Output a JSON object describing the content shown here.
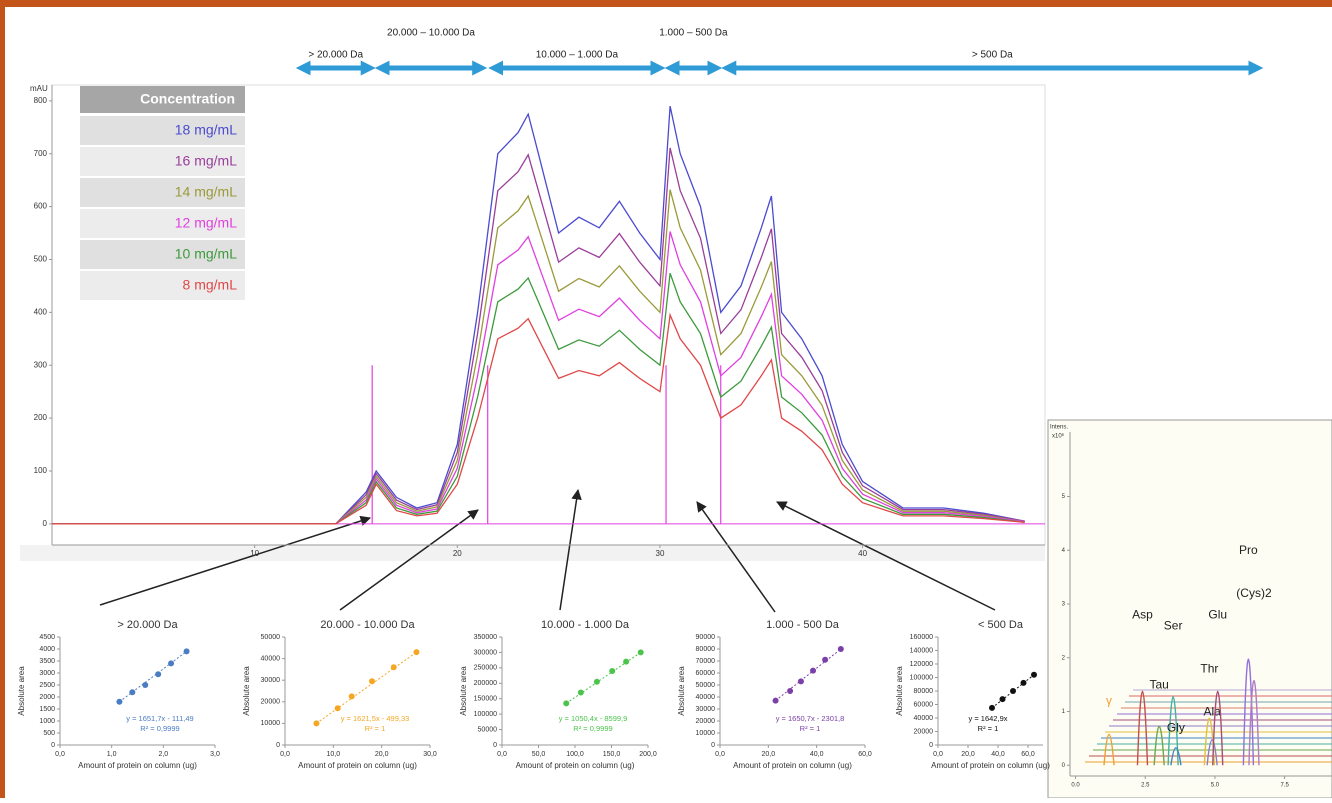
{
  "chart_data": [
    {
      "type": "line",
      "y_label": "mAU",
      "xlim": [
        0,
        49
      ],
      "ylim": [
        -40,
        830
      ],
      "xticks": [
        10,
        20,
        30,
        40
      ],
      "yticks": [
        0,
        100,
        200,
        300,
        400,
        500,
        600,
        700,
        800
      ],
      "legend_title": "Concentration",
      "x": [
        0,
        14,
        15.5,
        16,
        17,
        18,
        19,
        20,
        21,
        22,
        23,
        23.5,
        24,
        25,
        26,
        27,
        28,
        29,
        30,
        30.5,
        31,
        32,
        33,
        34,
        35,
        35.5,
        36,
        37,
        38,
        39,
        40,
        42,
        44,
        46,
        48
      ],
      "series": [
        {
          "name": "18 mg/mL",
          "color": "#4b4bd0",
          "values": [
            0,
            0,
            60,
            100,
            50,
            30,
            40,
            150,
            400,
            700,
            740,
            775,
            700,
            550,
            580,
            560,
            610,
            550,
            500,
            790,
            700,
            600,
            400,
            450,
            560,
            620,
            400,
            350,
            280,
            150,
            80,
            30,
            30,
            20,
            5
          ]
        },
        {
          "name": "16 mg/mL",
          "color": "#9a3e9a",
          "values": [
            0,
            0,
            55,
            95,
            45,
            27,
            36,
            135,
            360,
            630,
            666,
            698,
            630,
            495,
            522,
            504,
            549,
            495,
            450,
            711,
            630,
            540,
            360,
            405,
            504,
            558,
            360,
            315,
            252,
            135,
            72,
            27,
            27,
            18,
            5
          ]
        },
        {
          "name": "14 mg/mL",
          "color": "#9a9a3a",
          "values": [
            0,
            0,
            50,
            90,
            40,
            24,
            32,
            120,
            320,
            560,
            592,
            620,
            560,
            440,
            464,
            448,
            488,
            440,
            400,
            632,
            560,
            480,
            320,
            360,
            448,
            496,
            320,
            280,
            224,
            120,
            64,
            24,
            24,
            16,
            4
          ]
        },
        {
          "name": "12 mg/mL",
          "color": "#e040e0",
          "values": [
            0,
            0,
            45,
            85,
            35,
            21,
            28,
            105,
            280,
            490,
            518,
            543,
            490,
            385,
            406,
            392,
            427,
            385,
            350,
            553,
            490,
            420,
            280,
            315,
            392,
            434,
            280,
            245,
            196,
            105,
            56,
            21,
            21,
            14,
            4
          ]
        },
        {
          "name": "10 mg/mL",
          "color": "#3c9a3c",
          "values": [
            0,
            0,
            40,
            80,
            30,
            18,
            24,
            90,
            240,
            420,
            444,
            465,
            420,
            330,
            348,
            336,
            366,
            330,
            300,
            474,
            420,
            360,
            240,
            270,
            336,
            372,
            240,
            210,
            168,
            90,
            48,
            18,
            18,
            12,
            3
          ]
        },
        {
          "name": "8 mg/mL",
          "color": "#e04848",
          "values": [
            0,
            0,
            35,
            75,
            25,
            15,
            20,
            75,
            200,
            350,
            370,
            388,
            350,
            275,
            290,
            280,
            305,
            275,
            250,
            395,
            350,
            300,
            200,
            225,
            280,
            310,
            200,
            175,
            140,
            75,
            40,
            15,
            15,
            10,
            3
          ]
        }
      ],
      "markers": [
        15.8,
        21.5,
        30.3,
        33
      ],
      "ranges": [
        {
          "text": "> 20.000 Da",
          "x0": 12.1,
          "x1": 15.9
        },
        {
          "text": "20.000 – 10.000 Da",
          "x0": 16.0,
          "x1": 21.4
        },
        {
          "text": "10.000 – 1.000 Da",
          "x0": 21.6,
          "x1": 30.2
        },
        {
          "text": "1.000 – 500 Da",
          "x0": 30.3,
          "x1": 33.0
        },
        {
          "text": "> 500 Da",
          "x0": 33.1,
          "x1": 59.7
        }
      ]
    },
    {
      "type": "scatter",
      "title": "> 20.000 Da",
      "x_label": "Amount of protein on column (ug)",
      "y_label": "Absolute area",
      "color": "#4a7cc4",
      "xlim": [
        0,
        3
      ],
      "xticks": [
        {
          "value": 0,
          "label": "0,0"
        },
        {
          "value": 1,
          "label": "1,0"
        },
        {
          "value": 2,
          "label": "2,0"
        },
        {
          "value": 3,
          "label": "3,0"
        }
      ],
      "ylim": [
        0,
        4500
      ],
      "yticks": [
        0,
        500,
        1000,
        1500,
        2000,
        2500,
        3000,
        3500,
        4000,
        4500
      ],
      "x": [
        1.15,
        1.4,
        1.65,
        1.9,
        2.15,
        2.45
      ],
      "values": [
        1800,
        2200,
        2500,
        2950,
        3400,
        3900
      ],
      "equation": "y = 1651,7x - 111,49",
      "r2": "R² = 0,9999"
    },
    {
      "type": "scatter",
      "title": "20.000 - 10.000 Da",
      "x_label": "Amount of protein on column (ug)",
      "y_label": "Absolute area",
      "color": "#f5a623",
      "xlim": [
        0,
        30
      ],
      "xticks": [
        {
          "value": 0,
          "label": "0,0"
        },
        {
          "value": 10,
          "label": "10,0"
        },
        {
          "value": 20,
          "label": "20,0"
        },
        {
          "value": 30,
          "label": "30,0"
        }
      ],
      "ylim": [
        0,
        50000
      ],
      "yticks": [
        0,
        10000,
        20000,
        30000,
        40000,
        50000
      ],
      "x": [
        6.5,
        10.9,
        13.8,
        18,
        22.5,
        27.2
      ],
      "values": [
        10000,
        17000,
        22500,
        29500,
        36000,
        43000
      ],
      "equation": "y = 1621,5x - 499,33",
      "r2": "R² = 1"
    },
    {
      "type": "scatter",
      "title": "10.000 - 1.000 Da",
      "x_label": "Amount of protein on column (ug)",
      "y_label": "Absolute area",
      "color": "#4cc44c",
      "xlim": [
        0,
        200
      ],
      "xticks": [
        {
          "value": 0,
          "label": "0,0"
        },
        {
          "value": 50,
          "label": "50,0"
        },
        {
          "value": 100,
          "label": "100,0"
        },
        {
          "value": 150,
          "label": "150,0"
        },
        {
          "value": 200,
          "label": "200,0"
        }
      ],
      "ylim": [
        0,
        350000
      ],
      "yticks": [
        0,
        50000,
        100000,
        150000,
        200000,
        250000,
        300000,
        350000
      ],
      "x": [
        88,
        108,
        130,
        151,
        170,
        190
      ],
      "values": [
        135000,
        170000,
        205000,
        240000,
        270000,
        300000
      ],
      "equation": "y = 1050,4x - 8599,9",
      "r2": "R² = 0,9999"
    },
    {
      "type": "scatter",
      "title": "1.000 - 500 Da",
      "x_label": "Amount of protein on column (ug)",
      "y_label": "Absolute area",
      "color": "#7a3fa8",
      "xlim": [
        0,
        60
      ],
      "xticks": [
        {
          "value": 0,
          "label": "0,0"
        },
        {
          "value": 20,
          "label": "20,0"
        },
        {
          "value": 40,
          "label": "40,0"
        },
        {
          "value": 60,
          "label": "60,0"
        }
      ],
      "ylim": [
        0,
        90000
      ],
      "yticks": [
        0,
        10000,
        20000,
        30000,
        40000,
        50000,
        60000,
        70000,
        80000,
        90000
      ],
      "x": [
        23,
        29,
        33.5,
        38.5,
        43.5,
        50
      ],
      "values": [
        37000,
        45000,
        53000,
        62000,
        71000,
        80000
      ],
      "equation": "y = 1650,7x - 2301,8",
      "r2": "R² = 1"
    },
    {
      "type": "scatter",
      "title": "< 500 Da",
      "x_label": "Amount of protein on column (ug)",
      "y_label": "Absolute area",
      "color": "#111111",
      "xlim": [
        0,
        70
      ],
      "xticks": [
        {
          "value": 0,
          "label": "0,0"
        },
        {
          "value": 20,
          "label": "20,0"
        },
        {
          "value": 40,
          "label": "40,0"
        },
        {
          "value": 60,
          "label": "60,0"
        }
      ],
      "ylim": [
        0,
        160000
      ],
      "yticks": [
        0,
        20000,
        40000,
        60000,
        80000,
        100000,
        120000,
        140000,
        160000
      ],
      "x": [
        36,
        43,
        50,
        57,
        64
      ],
      "values": [
        55000,
        68000,
        80000,
        92000,
        104000
      ],
      "equation": "y = 1642,9x",
      "r2": "R² = 1"
    },
    {
      "type": "peaks",
      "y_label": "Intens.",
      "y_unit": "x10⁶",
      "xlim": [
        -0.2,
        9.2
      ],
      "xticks": [
        {
          "value": 0,
          "label": "0.0"
        },
        2.5,
        {
          "value": 5,
          "label": "5.0"
        },
        7.5
      ],
      "ylim": [
        -0.2,
        6.2
      ],
      "yticks": [
        0,
        1,
        2,
        3,
        4,
        5
      ],
      "peaks": [
        {
          "label": "γ",
          "x": 1.2,
          "y": 1.0,
          "color": "#f0a030"
        },
        {
          "label": "Asp",
          "x": 2.4,
          "y": 2.6,
          "color": "#c0504d"
        },
        {
          "label": "Tau",
          "x": 3.0,
          "y": 1.3,
          "color": "#6aa84f"
        },
        {
          "label": "Ser",
          "x": 3.5,
          "y": 2.4,
          "color": "#45b0a0"
        },
        {
          "label": "Gly",
          "x": 3.6,
          "y": 0.5,
          "color": "#3d85c6"
        },
        {
          "label": "Thr",
          "x": 4.8,
          "y": 1.6,
          "color": "#e0c040"
        },
        {
          "label": "Ala",
          "x": 4.9,
          "y": 0.8,
          "color": "#8e7cc3"
        },
        {
          "label": "Glu",
          "x": 5.1,
          "y": 2.6,
          "color": "#a64d79"
        },
        {
          "label": "Pro",
          "x": 6.2,
          "y": 3.8,
          "color": "#9370db"
        },
        {
          "label": "(Cys)2",
          "x": 6.4,
          "y": 3.0,
          "color": "#b07cc3"
        }
      ]
    }
  ]
}
